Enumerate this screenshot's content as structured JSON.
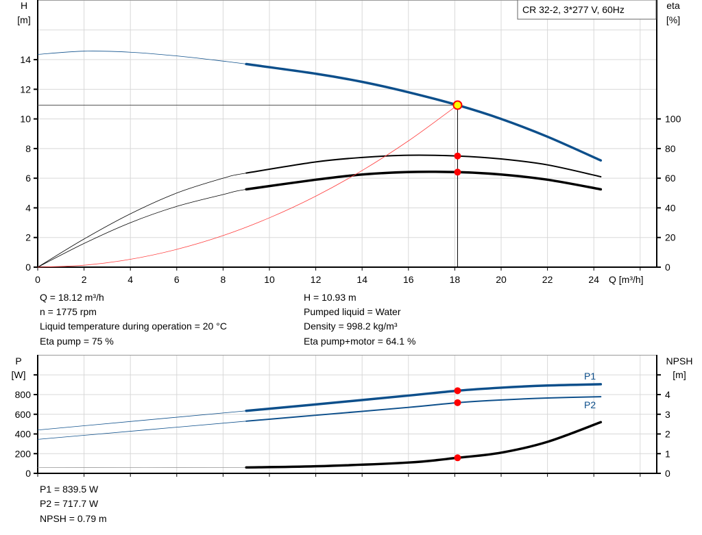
{
  "chart_data": [
    {
      "type": "line",
      "title": "CR 32-2, 3*277 V, 60Hz",
      "xlabel": "Q [m³/h]",
      "ylabel": "H\n[m]",
      "ylabel_lines": [
        "H",
        "[m]"
      ],
      "y2label_lines": [
        "eta",
        "[%]"
      ],
      "xlim": [
        0,
        26.7
      ],
      "ylim": [
        0,
        18
      ],
      "y2lim": [
        0,
        180
      ],
      "x_ticks": [
        0,
        2,
        4,
        6,
        8,
        10,
        12,
        14,
        16,
        18,
        20,
        22,
        24
      ],
      "y_ticks": [
        0,
        2,
        4,
        6,
        8,
        10,
        12,
        14
      ],
      "y2_ticks": [
        0,
        20,
        40,
        60,
        80,
        100
      ],
      "grid": true,
      "colors": {
        "head": "#0d4f8b",
        "eta": "#000000",
        "system": "#ff3b3b",
        "point": "#ff0000",
        "op_point_fill": "#ffff00"
      },
      "series": [
        {
          "axis": "y",
          "color": "#0d4f8b",
          "thin_until": 9,
          "x": [
            0,
            2,
            4,
            6,
            8,
            9,
            12,
            14,
            16,
            18.12,
            20,
            22,
            24.3
          ],
          "y": [
            14.35,
            14.57,
            14.5,
            14.25,
            13.9,
            13.7,
            13.05,
            12.5,
            11.8,
            10.93,
            10.0,
            8.8,
            7.2
          ]
        },
        {
          "axis": "y2",
          "color": "#000000",
          "thin_until": 9,
          "x": [
            0,
            2,
            4,
            6,
            8,
            9,
            12,
            14,
            16,
            18.12,
            20,
            22,
            24.3
          ],
          "y": [
            0,
            19,
            36,
            50,
            60,
            63.5,
            71,
            74,
            75.5,
            75,
            73,
            69,
            61
          ]
        },
        {
          "axis": "y2",
          "color": "#000000",
          "thin_until": 9,
          "bold": true,
          "x": [
            0,
            2,
            4,
            6,
            8,
            9,
            12,
            14,
            16,
            18.12,
            20,
            22,
            24.3
          ],
          "y": [
            0,
            16,
            30,
            41,
            49,
            52.5,
            59,
            62.5,
            64.2,
            64.1,
            62.5,
            59,
            52.5
          ]
        },
        {
          "axis": "y",
          "color": "#ff3b3b",
          "system": true,
          "x": [
            0,
            2,
            4,
            6,
            8,
            10,
            12,
            14,
            16,
            18.12
          ],
          "y": [
            0,
            0.13,
            0.53,
            1.2,
            2.13,
            3.33,
            4.79,
            6.52,
            8.52,
            10.93
          ]
        }
      ],
      "operating_point": {
        "Q": 18.12,
        "H": 10.93,
        "eta_pump": 75,
        "eta_total": 64.1
      }
    },
    {
      "type": "line",
      "ylabel_lines": [
        "P",
        "[W]"
      ],
      "y2label_lines": [
        "NPSH",
        "[m]"
      ],
      "xlim": [
        0,
        26.7
      ],
      "ylim": [
        0,
        1200
      ],
      "y2lim": [
        0,
        6
      ],
      "y_ticks": [
        0,
        200,
        400,
        600,
        800
      ],
      "y2_ticks": [
        0,
        1,
        2,
        3,
        4
      ],
      "grid": true,
      "series": [
        {
          "name": "P1",
          "axis": "y",
          "color": "#0d4f8b",
          "thin_until": 9,
          "bold": true,
          "x": [
            0,
            9,
            12,
            16,
            18.12,
            20,
            22,
            24.3
          ],
          "y": [
            440,
            635,
            700,
            790,
            839.5,
            870,
            892,
            905
          ]
        },
        {
          "name": "P2",
          "axis": "y",
          "color": "#0d4f8b",
          "thin_until": 9,
          "x": [
            0,
            9,
            12,
            16,
            18.12,
            20,
            22,
            24.3
          ],
          "y": [
            345,
            530,
            590,
            670,
            717.7,
            745,
            765,
            778
          ]
        },
        {
          "axis": "y2",
          "color": "#000000",
          "thin_until": 9,
          "bold": true,
          "thin_color": "#999999",
          "x": [
            0,
            9,
            12,
            16,
            18.12,
            20,
            22,
            24.3
          ],
          "y": [
            0.3,
            0.3,
            0.36,
            0.55,
            0.79,
            1.05,
            1.6,
            2.6
          ]
        }
      ],
      "operating_point": {
        "Q": 18.12,
        "P1": 839.5,
        "P2": 717.7,
        "NPSH": 0.79
      }
    }
  ],
  "info_top_left": [
    "Q = 18.12 m³/h",
    "n = 1775 rpm",
    "Liquid temperature during operation = 20 °C",
    "Eta pump = 75 %"
  ],
  "info_top_right": [
    "H = 10.93 m",
    "Pumped liquid = Water",
    "Density = 998.2 kg/m³",
    "Eta pump+motor = 64.1 %"
  ],
  "info_bottom": [
    "P1 = 839.5 W",
    "P2 = 717.7 W",
    "NPSH = 0.79 m"
  ]
}
